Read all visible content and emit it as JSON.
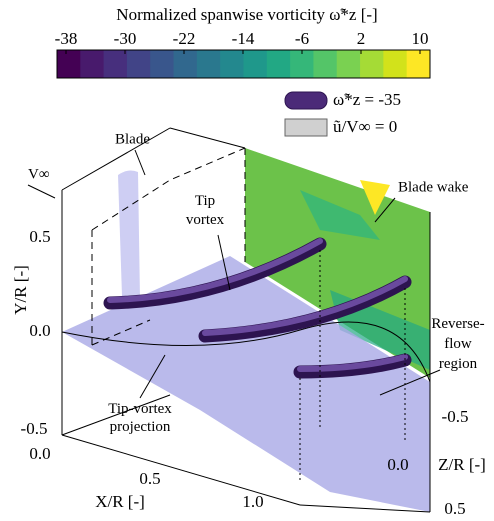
{
  "colorbar": {
    "title": "Normalized spanwise vorticity ω̃*z [-]",
    "lim": [
      -38,
      10
    ],
    "ticks": [
      -38,
      -30,
      -22,
      -14,
      -6,
      2,
      10
    ],
    "colors": [
      "#440154",
      "#481a6c",
      "#472f7d",
      "#414487",
      "#39568c",
      "#31688e",
      "#2a788e",
      "#23888e",
      "#1f988b",
      "#22a884",
      "#35b779",
      "#54c568",
      "#7ad151",
      "#a5db36",
      "#d2e21b",
      "#fde725"
    ]
  },
  "legend": [
    "ω̃*z = -35",
    "ũ/V∞ = 0"
  ],
  "annotations": {
    "blade": "Blade",
    "blade_wake": "Blade wake",
    "freestream": "V∞",
    "tip_vortex": [
      "Tip",
      "vortex"
    ],
    "reverse_flow": [
      "Reverse-",
      "flow",
      "region"
    ],
    "projection": [
      "Tip-vortex",
      "projection"
    ]
  },
  "axes": {
    "x": {
      "label": "X/R [-]",
      "ticks": [
        "0.0",
        "0.5",
        "1.0"
      ]
    },
    "y": {
      "label": "Y/R [-]",
      "ticks": [
        "0.5",
        "0.0",
        "-0.5"
      ]
    },
    "z": {
      "label": "Z/R [-]",
      "ticks": [
        "-0.5",
        "0.0",
        "0.5"
      ]
    }
  }
}
